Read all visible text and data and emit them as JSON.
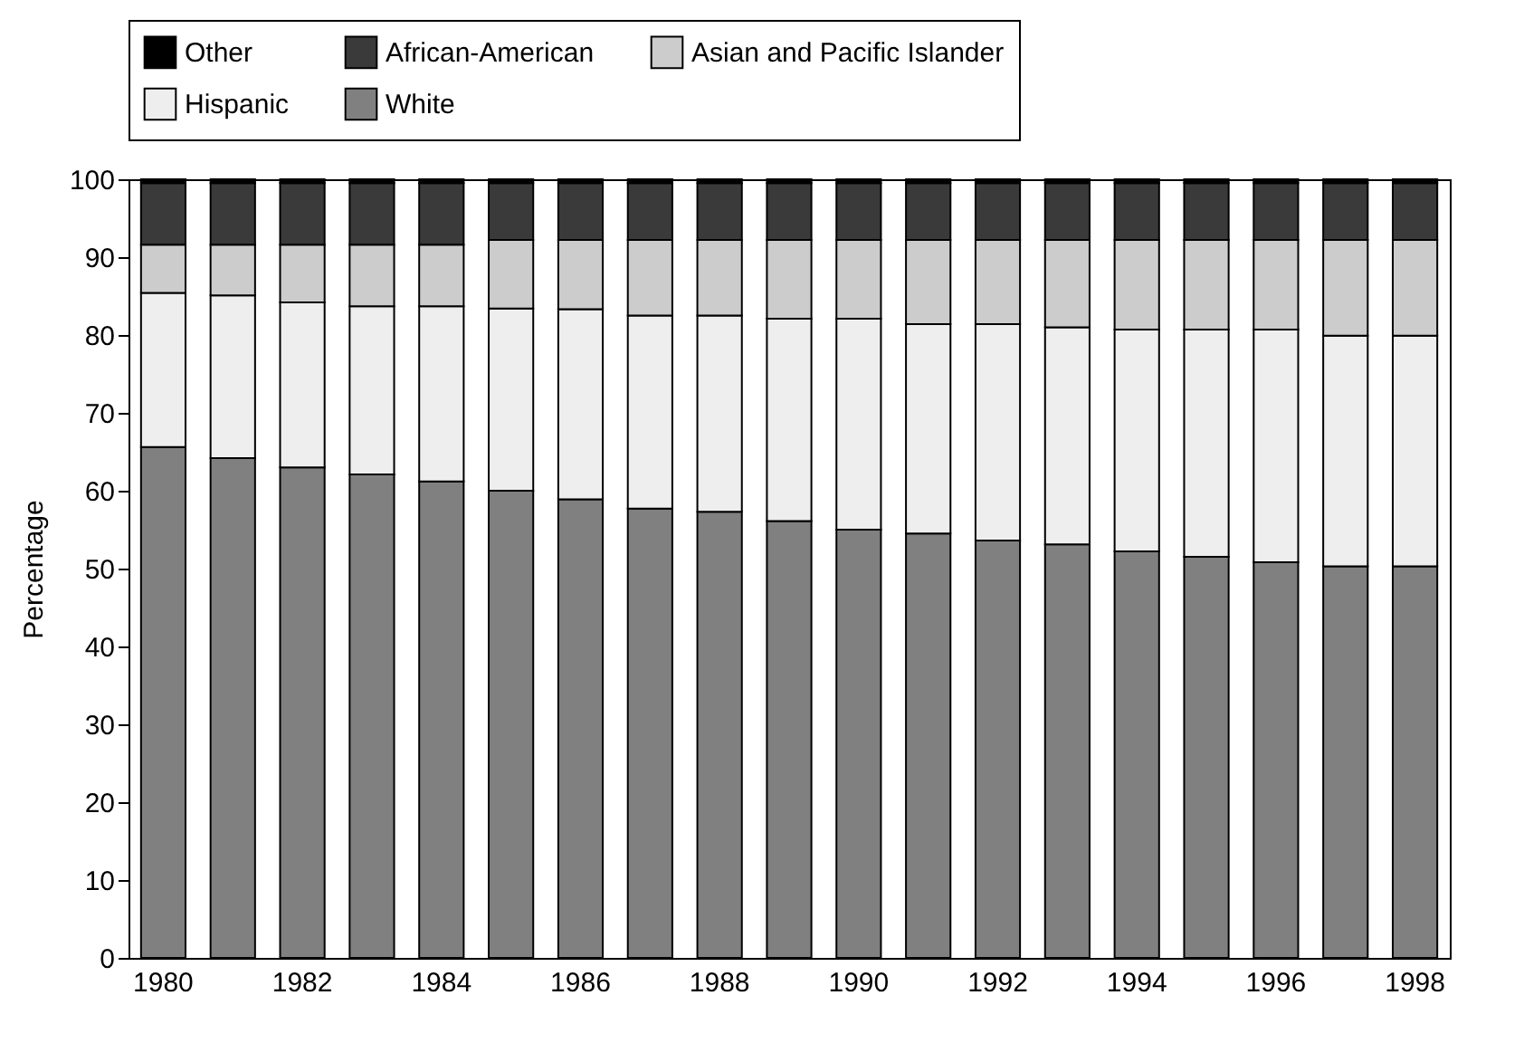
{
  "chart_data": {
    "type": "bar",
    "stacked": true,
    "ylabel": "Percentage",
    "ylim": [
      0,
      100
    ],
    "yticks": [
      0,
      10,
      20,
      30,
      40,
      50,
      60,
      70,
      80,
      90,
      100
    ],
    "grid": false,
    "legend": "top",
    "categories": [
      "1980",
      null,
      "1982",
      null,
      "1984",
      null,
      "1986",
      null,
      "1988",
      null,
      "1990",
      null,
      "1992",
      null,
      "1994",
      null,
      "1996",
      null,
      "1998"
    ],
    "series": [
      {
        "name": "White",
        "color": "#808080",
        "values": [
          65.6,
          64.2,
          63.0,
          62.1,
          61.2,
          60.0,
          58.9,
          57.7,
          57.3,
          56.1,
          55.0,
          54.5,
          53.6,
          53.1,
          52.2,
          51.5,
          50.8,
          50.3,
          50.3
        ]
      },
      {
        "name": "Hispanic",
        "color": "#eeeeee",
        "values": [
          19.8,
          20.9,
          21.2,
          21.6,
          22.5,
          23.4,
          24.4,
          24.8,
          25.2,
          26.0,
          27.1,
          26.9,
          27.8,
          27.9,
          28.5,
          29.2,
          29.9,
          29.6,
          29.6
        ]
      },
      {
        "name": "Asian and Pacific Islander",
        "color": "#cccccc",
        "values": [
          6.2,
          6.5,
          7.4,
          7.9,
          7.9,
          8.8,
          8.9,
          9.7,
          9.7,
          10.1,
          10.1,
          10.8,
          10.8,
          11.2,
          11.5,
          11.5,
          11.5,
          12.3,
          12.3
        ]
      },
      {
        "name": "African-American",
        "color": "#3a3a3a",
        "values": [
          7.9,
          7.9,
          7.9,
          7.9,
          7.9,
          7.3,
          7.3,
          7.3,
          7.3,
          7.3,
          7.3,
          7.3,
          7.3,
          7.3,
          7.3,
          7.3,
          7.3,
          7.3,
          7.3
        ]
      },
      {
        "name": "Other",
        "color": "#000000",
        "values": [
          0.5,
          0.5,
          0.5,
          0.5,
          0.5,
          0.5,
          0.5,
          0.5,
          0.5,
          0.5,
          0.5,
          0.5,
          0.5,
          0.5,
          0.5,
          0.5,
          0.5,
          0.5,
          0.5
        ]
      }
    ]
  }
}
